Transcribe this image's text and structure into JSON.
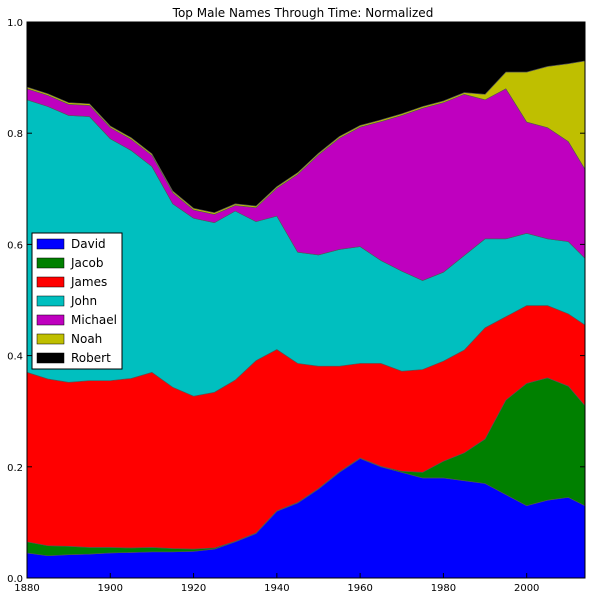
{
  "chart_data": {
    "type": "area",
    "stacked": true,
    "normalized": true,
    "title": "Top Male Names Through Time: Normalized",
    "xlabel": "",
    "ylabel": "",
    "xlim": [
      1880,
      2014
    ],
    "ylim": [
      0,
      1.0
    ],
    "xticks": [
      1880,
      1900,
      1920,
      1940,
      1960,
      1980,
      2000
    ],
    "yticks": [
      0.0,
      0.2,
      0.4,
      0.6,
      0.8,
      1.0
    ],
    "ytick_labels": [
      "0.0",
      "0.2",
      "0.4",
      "0.6",
      "0.8",
      "1.0"
    ],
    "grid": false,
    "legend_position": "center-left",
    "x": [
      1880,
      1885,
      1890,
      1895,
      1900,
      1905,
      1910,
      1915,
      1920,
      1925,
      1930,
      1935,
      1940,
      1945,
      1950,
      1955,
      1960,
      1965,
      1970,
      1975,
      1980,
      1985,
      1990,
      1995,
      2000,
      2005,
      2010,
      2014
    ],
    "series": [
      {
        "name": "David",
        "color": "#0000ff",
        "values": [
          0.045,
          0.04,
          0.042,
          0.043,
          0.045,
          0.046,
          0.047,
          0.047,
          0.048,
          0.052,
          0.065,
          0.08,
          0.12,
          0.135,
          0.16,
          0.19,
          0.215,
          0.2,
          0.19,
          0.18,
          0.18,
          0.175,
          0.17,
          0.15,
          0.13,
          0.14,
          0.145,
          0.13
        ]
      },
      {
        "name": "Jacob",
        "color": "#008000",
        "values": [
          0.02,
          0.018,
          0.015,
          0.012,
          0.01,
          0.008,
          0.008,
          0.006,
          0.004,
          0.002,
          0.001,
          0.001,
          0.001,
          0.001,
          0.001,
          0.001,
          0.001,
          0.001,
          0.002,
          0.01,
          0.03,
          0.05,
          0.08,
          0.17,
          0.22,
          0.22,
          0.2,
          0.18
        ]
      },
      {
        "name": "James",
        "color": "#ff0000",
        "values": [
          0.305,
          0.3,
          0.295,
          0.3,
          0.3,
          0.305,
          0.315,
          0.29,
          0.275,
          0.28,
          0.29,
          0.31,
          0.29,
          0.25,
          0.22,
          0.19,
          0.17,
          0.185,
          0.18,
          0.185,
          0.18,
          0.185,
          0.2,
          0.15,
          0.14,
          0.13,
          0.13,
          0.145
        ]
      },
      {
        "name": "John",
        "color": "#00bfbf",
        "values": [
          0.49,
          0.49,
          0.48,
          0.475,
          0.435,
          0.41,
          0.37,
          0.33,
          0.32,
          0.305,
          0.304,
          0.25,
          0.24,
          0.2,
          0.2,
          0.21,
          0.21,
          0.185,
          0.18,
          0.16,
          0.16,
          0.17,
          0.16,
          0.14,
          0.13,
          0.12,
          0.13,
          0.12
        ]
      },
      {
        "name": "Michael",
        "color": "#bf00bf",
        "values": [
          0.02,
          0.02,
          0.02,
          0.02,
          0.02,
          0.02,
          0.02,
          0.02,
          0.015,
          0.015,
          0.01,
          0.025,
          0.05,
          0.14,
          0.18,
          0.2,
          0.215,
          0.25,
          0.28,
          0.31,
          0.305,
          0.29,
          0.25,
          0.27,
          0.2,
          0.2,
          0.18,
          0.16
        ]
      },
      {
        "name": "Noah",
        "color": "#bfbf00",
        "values": [
          0.003,
          0.003,
          0.003,
          0.003,
          0.003,
          0.003,
          0.003,
          0.003,
          0.003,
          0.003,
          0.003,
          0.003,
          0.003,
          0.003,
          0.003,
          0.003,
          0.003,
          0.003,
          0.003,
          0.003,
          0.003,
          0.003,
          0.01,
          0.03,
          0.09,
          0.11,
          0.14,
          0.195
        ]
      },
      {
        "name": "Robert",
        "color": "#000000",
        "values": [
          0.117,
          0.129,
          0.145,
          0.147,
          0.187,
          0.208,
          0.237,
          0.304,
          0.335,
          0.343,
          0.327,
          0.331,
          0.296,
          0.271,
          0.236,
          0.206,
          0.186,
          0.176,
          0.165,
          0.152,
          0.142,
          0.127,
          0.13,
          0.09,
          0.09,
          0.08,
          0.075,
          0.07
        ]
      }
    ]
  }
}
